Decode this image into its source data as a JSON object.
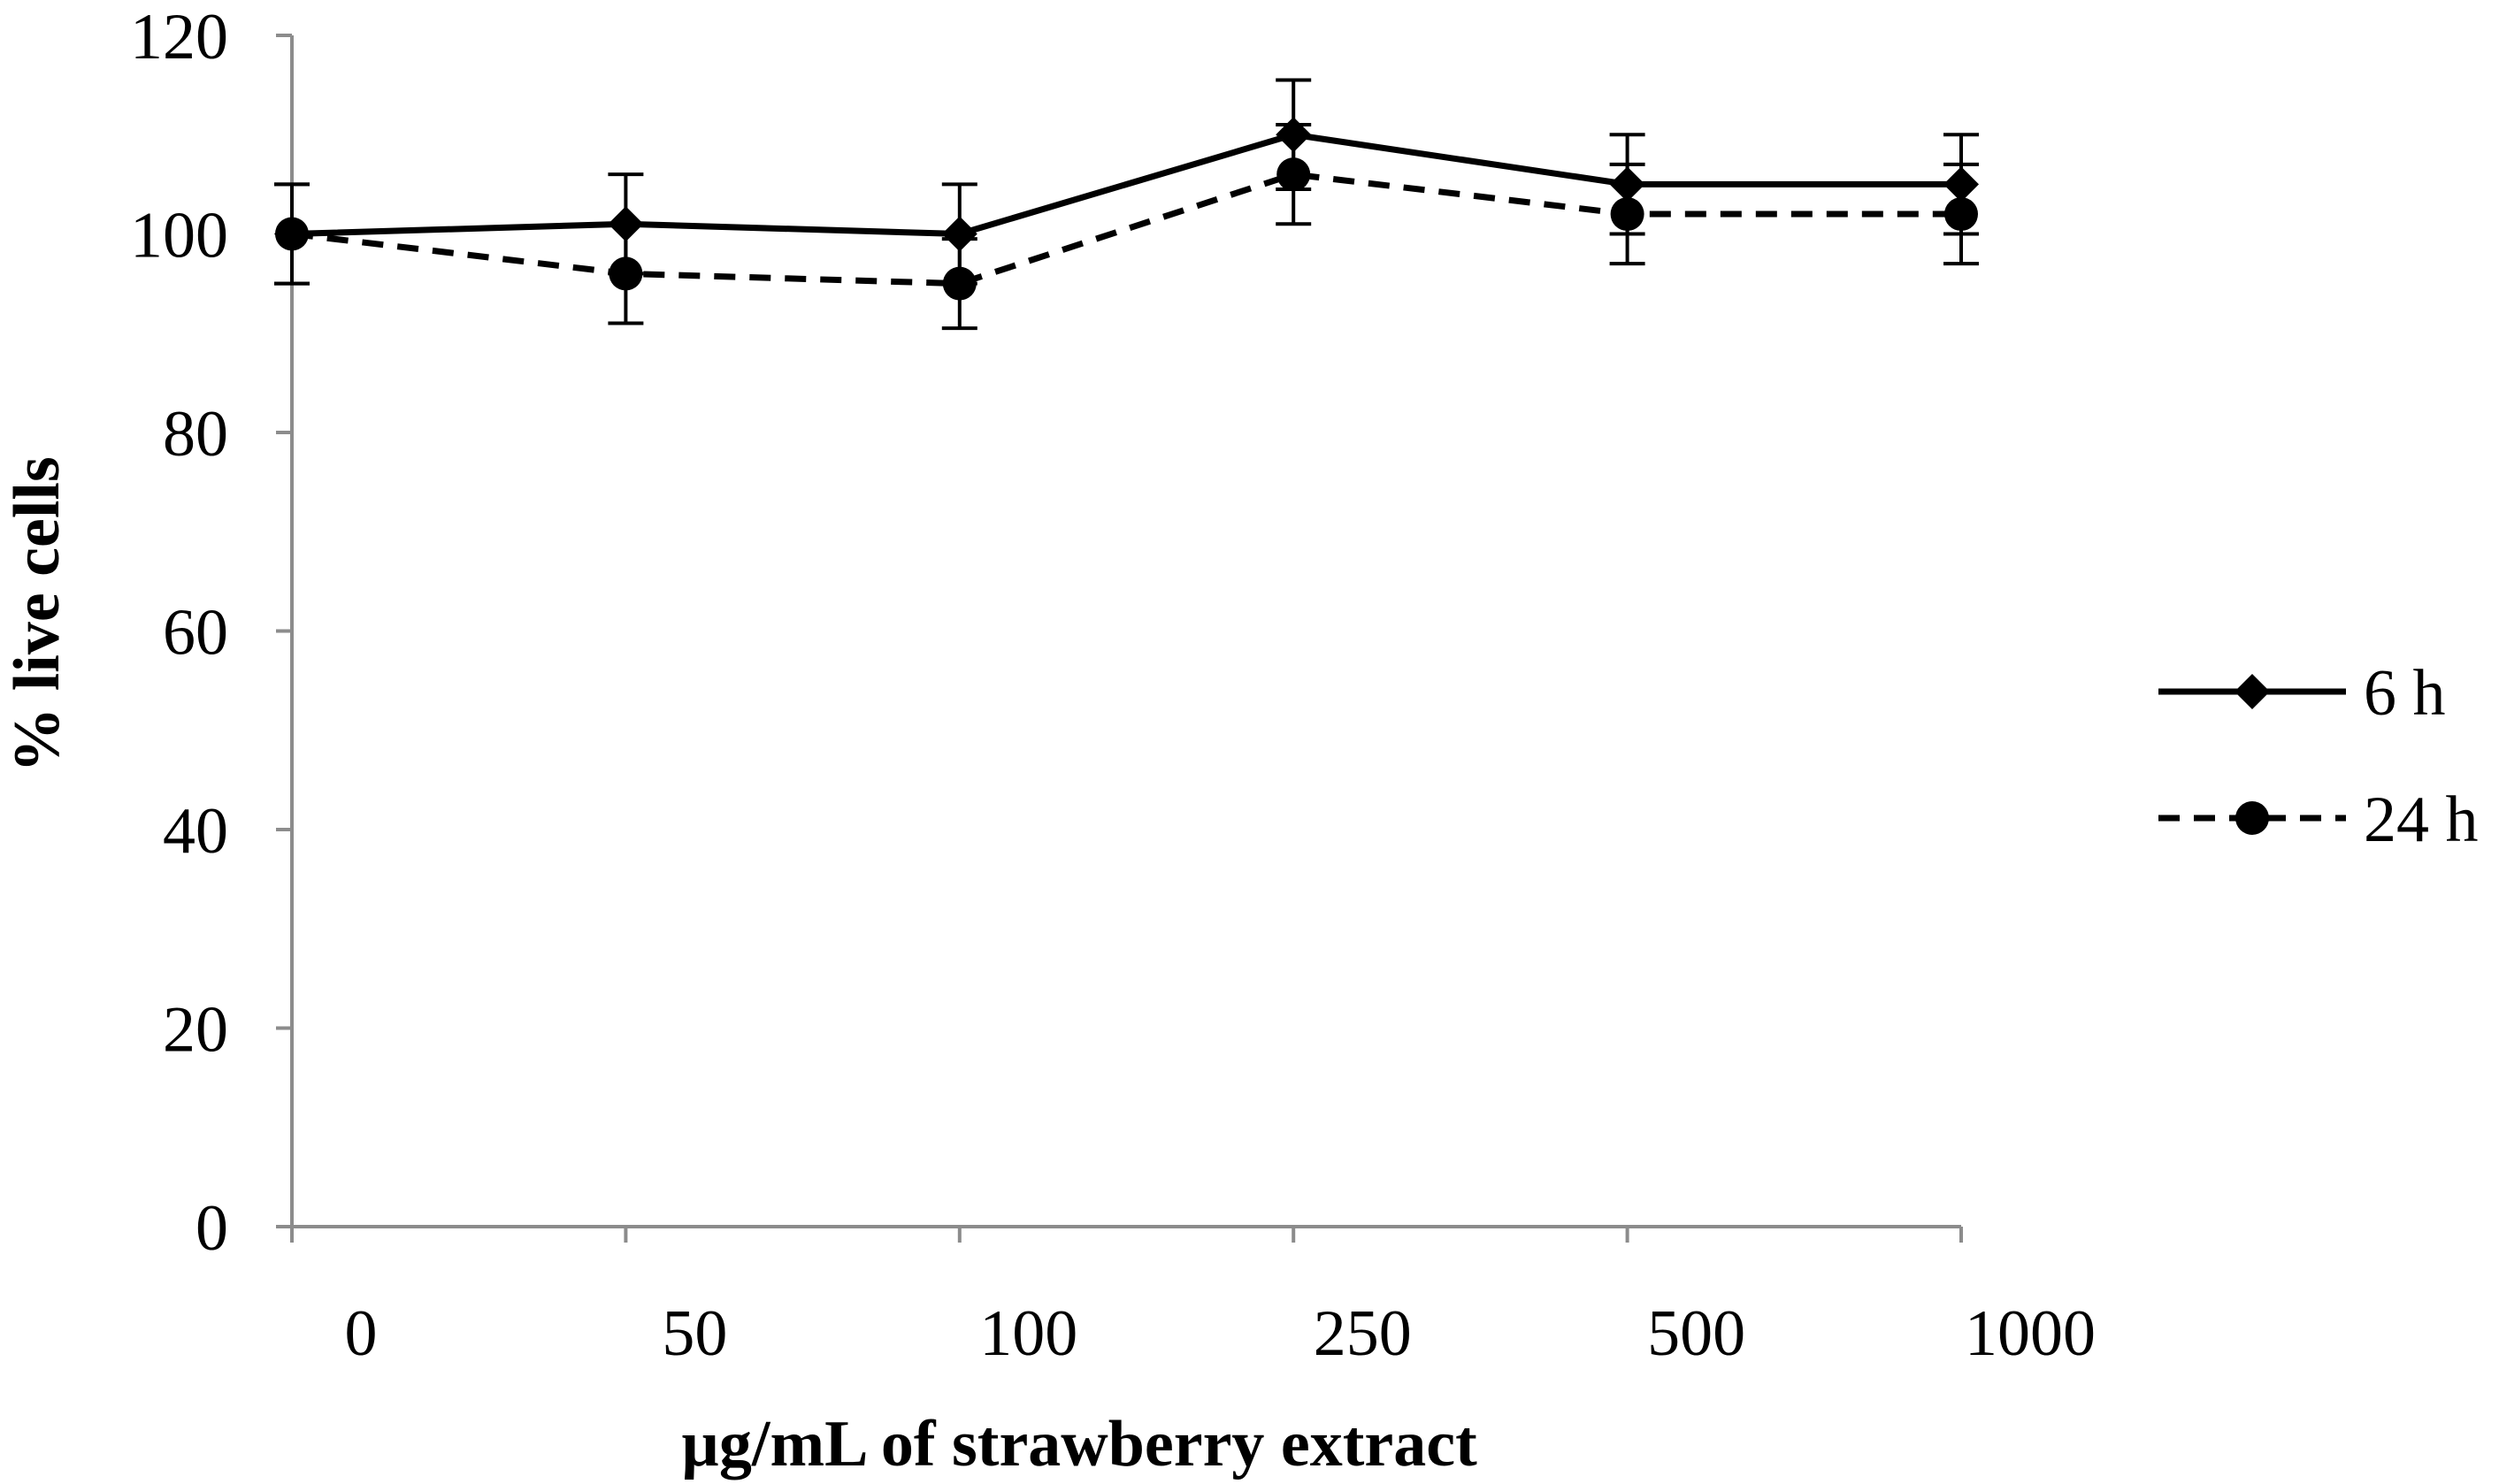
{
  "chart_data": {
    "type": "line",
    "title": "",
    "xlabel": "µg/mL of strawberry extract",
    "ylabel": "% live cells",
    "categories": [
      "0",
      "50",
      "100",
      "250",
      "500",
      "1000"
    ],
    "ylim": [
      0,
      120
    ],
    "yticks": [
      0,
      20,
      40,
      60,
      80,
      100,
      120
    ],
    "grid": false,
    "legend_position": "right",
    "series": [
      {
        "name": "6 h",
        "values": [
          100,
          101,
          100,
          110,
          105,
          105
        ],
        "errors": [
          5,
          5,
          5,
          5.5,
          5,
          5
        ],
        "marker": "diamond",
        "line_style": "solid",
        "color": "#000000"
      },
      {
        "name": "24 h",
        "values": [
          100,
          96,
          95,
          106,
          102,
          102
        ],
        "errors": [
          5,
          5,
          4.5,
          5,
          5,
          5
        ],
        "marker": "circle",
        "line_style": "dashed",
        "color": "#000000"
      }
    ]
  }
}
